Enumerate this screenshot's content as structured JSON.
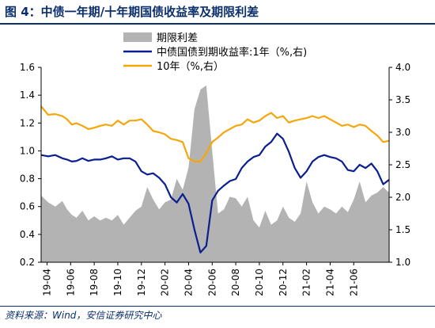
{
  "title": "图 4：中债一年期/十年期国债收益率及期限利差",
  "source": "资料来源：Wind，安信证券研究中心",
  "chart_data": {
    "type": "area+line",
    "x_tick_labels": [
      "19-04",
      "19-06",
      "19-08",
      "19-10",
      "19-12",
      "20-02",
      "20-04",
      "20-06",
      "20-08",
      "20-10",
      "20-12",
      "21-02",
      "21-04",
      "21-06"
    ],
    "x_range": [
      0,
      29.5
    ],
    "y_left": {
      "range": [
        0.2,
        1.6
      ],
      "ticks": [
        "0.2",
        "0.4",
        "0.6",
        "0.8",
        "1.0",
        "1.2",
        "1.4",
        "1.6"
      ]
    },
    "y_right": {
      "range": [
        1.0,
        4.0
      ],
      "ticks": [
        "1.0",
        "1.5",
        "2.0",
        "2.5",
        "3.0",
        "3.5",
        "4.0"
      ]
    },
    "grid": false,
    "legend_position": "top-center",
    "series": [
      {
        "name": "期限利差",
        "axis": "left",
        "kind": "area",
        "color": "#b3b3b3",
        "x": [
          0,
          0.6,
          1.2,
          1.8,
          2.2,
          2.6,
          3.0,
          3.5,
          4.0,
          4.5,
          5.0,
          5.5,
          6.0,
          6.5,
          7.0,
          7.5,
          8.0,
          8.5,
          9.0,
          9.5,
          10.0,
          10.5,
          11.0,
          11.5,
          12.0,
          12.5,
          13.0,
          13.5,
          14.0,
          14.5,
          15.0,
          15.5,
          16.0,
          16.5,
          17.0,
          17.5,
          18.0,
          18.5,
          19.0,
          19.5,
          20.0,
          20.5,
          21.0,
          21.5,
          22.0,
          22.5,
          23.0,
          23.5,
          24.0,
          24.5,
          25.0,
          25.5,
          26.0,
          26.5,
          27.0,
          27.5,
          28.0,
          28.5,
          29.0,
          29.5
        ],
        "values": [
          0.68,
          0.63,
          0.6,
          0.64,
          0.58,
          0.54,
          0.52,
          0.57,
          0.5,
          0.53,
          0.5,
          0.52,
          0.5,
          0.54,
          0.47,
          0.52,
          0.57,
          0.6,
          0.74,
          0.65,
          0.58,
          0.63,
          0.65,
          0.8,
          0.72,
          0.88,
          1.3,
          1.44,
          1.47,
          1.0,
          0.55,
          0.58,
          0.67,
          0.66,
          0.6,
          0.67,
          0.5,
          0.45,
          0.57,
          0.47,
          0.5,
          0.6,
          0.52,
          0.49,
          0.55,
          0.78,
          0.63,
          0.55,
          0.6,
          0.58,
          0.55,
          0.6,
          0.56,
          0.65,
          0.78,
          0.63,
          0.68,
          0.7,
          0.74,
          0.7
        ]
      },
      {
        "name": "中债国债到期收益率:1年（%,右)",
        "axis": "right",
        "kind": "line",
        "color": "#0a1f8f",
        "x": [
          0,
          0.6,
          1.2,
          1.8,
          2.2,
          2.6,
          3.0,
          3.5,
          4.0,
          4.5,
          5.0,
          5.5,
          6.0,
          6.5,
          7.0,
          7.5,
          8.0,
          8.5,
          9.0,
          9.5,
          10.0,
          10.5,
          11.0,
          11.5,
          12.0,
          12.5,
          13.0,
          13.5,
          14.0,
          14.5,
          15.0,
          15.5,
          16.0,
          16.5,
          17.0,
          17.5,
          18.0,
          18.5,
          19.0,
          19.5,
          20.0,
          20.5,
          21.0,
          21.5,
          22.0,
          22.5,
          23.0,
          23.5,
          24.0,
          24.5,
          25.0,
          25.5,
          26.0,
          26.5,
          27.0,
          27.5,
          28.0,
          28.5,
          29.0,
          29.5
        ],
        "values": [
          2.65,
          2.63,
          2.65,
          2.6,
          2.58,
          2.55,
          2.56,
          2.6,
          2.56,
          2.58,
          2.58,
          2.6,
          2.63,
          2.58,
          2.6,
          2.6,
          2.55,
          2.4,
          2.35,
          2.37,
          2.3,
          2.2,
          2.0,
          1.92,
          2.05,
          1.9,
          1.5,
          1.15,
          1.25,
          1.95,
          2.1,
          2.18,
          2.25,
          2.28,
          2.45,
          2.55,
          2.62,
          2.65,
          2.78,
          2.85,
          2.98,
          2.9,
          2.7,
          2.45,
          2.3,
          2.4,
          2.55,
          2.62,
          2.65,
          2.62,
          2.6,
          2.55,
          2.42,
          2.4,
          2.5,
          2.45,
          2.52,
          2.4,
          2.2,
          2.27
        ]
      },
      {
        "name": "10年（%,右）",
        "axis": "right",
        "kind": "line",
        "color": "#f5a60a",
        "x": [
          0,
          0.6,
          1.2,
          1.8,
          2.2,
          2.6,
          3.0,
          3.5,
          4.0,
          4.5,
          5.0,
          5.5,
          6.0,
          6.5,
          7.0,
          7.5,
          8.0,
          8.5,
          9.0,
          9.5,
          10.0,
          10.5,
          11.0,
          11.5,
          12.0,
          12.5,
          13.0,
          13.5,
          14.0,
          14.5,
          15.0,
          15.5,
          16.0,
          16.5,
          17.0,
          17.5,
          18.0,
          18.5,
          19.0,
          19.5,
          20.0,
          20.5,
          21.0,
          21.5,
          22.0,
          22.5,
          23.0,
          23.5,
          24.0,
          24.5,
          25.0,
          25.5,
          26.0,
          26.5,
          27.0,
          27.5,
          28.0,
          28.5,
          29.0,
          29.5
        ],
        "values": [
          3.4,
          3.27,
          3.28,
          3.25,
          3.2,
          3.12,
          3.14,
          3.1,
          3.05,
          3.07,
          3.1,
          3.12,
          3.1,
          3.18,
          3.12,
          3.18,
          3.18,
          3.2,
          3.12,
          3.02,
          3.0,
          2.97,
          2.9,
          2.88,
          2.85,
          2.6,
          2.55,
          2.55,
          2.68,
          2.85,
          2.92,
          3.0,
          3.05,
          3.1,
          3.12,
          3.2,
          3.15,
          3.18,
          3.25,
          3.3,
          3.22,
          3.25,
          3.15,
          3.18,
          3.2,
          3.22,
          3.25,
          3.22,
          3.25,
          3.2,
          3.15,
          3.1,
          3.12,
          3.08,
          3.12,
          3.1,
          3.02,
          2.95,
          2.85,
          2.87
        ]
      }
    ]
  }
}
